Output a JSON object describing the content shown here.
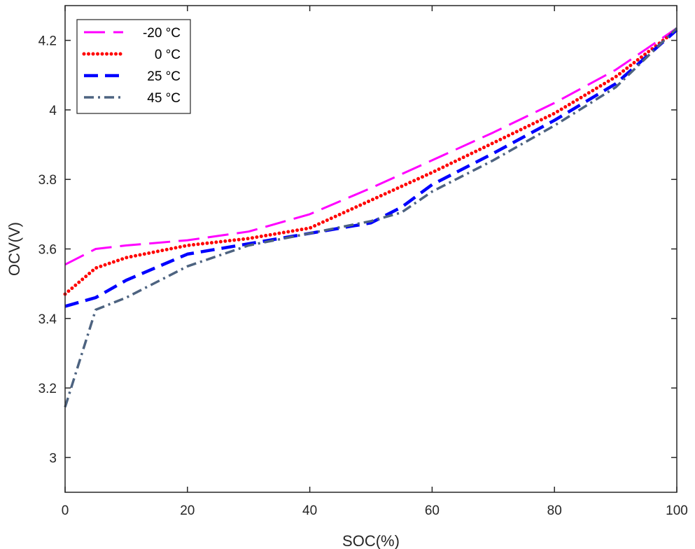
{
  "chart_data": {
    "type": "line",
    "xlabel": "SOC(%)",
    "ylabel": "OCV(V)",
    "xlim": [
      0,
      100
    ],
    "ylim": [
      2.9,
      4.3
    ],
    "xticks": [
      "0",
      "20",
      "40",
      "60",
      "80",
      "100"
    ],
    "yticks": [
      "3",
      "3.2",
      "3.4",
      "3.6",
      "3.8",
      "4",
      "4.2"
    ],
    "grid": false,
    "legend_position": "top-left",
    "series": [
      {
        "name": "-20 °C",
        "color": "#ff00ff",
        "dash": "dashed",
        "x": [
          0,
          5,
          10,
          20,
          30,
          40,
          50,
          60,
          70,
          80,
          90,
          100
        ],
        "y": [
          3.555,
          3.6,
          3.61,
          3.625,
          3.65,
          3.7,
          3.775,
          3.855,
          3.935,
          4.02,
          4.115,
          4.235
        ]
      },
      {
        "name": "0 °C",
        "color": "#ff0000",
        "dash": "dotted",
        "x": [
          0,
          5,
          10,
          20,
          30,
          40,
          50,
          60,
          70,
          80,
          90,
          100
        ],
        "y": [
          3.47,
          3.545,
          3.575,
          3.61,
          3.63,
          3.66,
          3.74,
          3.82,
          3.905,
          3.99,
          4.095,
          4.23
        ]
      },
      {
        "name": "25 °C",
        "color": "#0000ff",
        "dash": "dashed-long",
        "x": [
          0,
          5,
          10,
          20,
          30,
          40,
          50,
          55,
          60,
          70,
          80,
          90,
          100
        ],
        "y": [
          3.435,
          3.46,
          3.51,
          3.585,
          3.615,
          3.645,
          3.675,
          3.72,
          3.785,
          3.875,
          3.97,
          4.075,
          4.23
        ]
      },
      {
        "name": "45 °C",
        "color": "#4d6380",
        "dash": "dash-dot",
        "x": [
          0,
          5,
          10,
          20,
          30,
          40,
          50,
          55,
          60,
          70,
          80,
          90,
          100
        ],
        "y": [
          3.145,
          3.425,
          3.46,
          3.55,
          3.61,
          3.645,
          3.68,
          3.705,
          3.765,
          3.855,
          3.955,
          4.065,
          4.235
        ]
      }
    ]
  }
}
